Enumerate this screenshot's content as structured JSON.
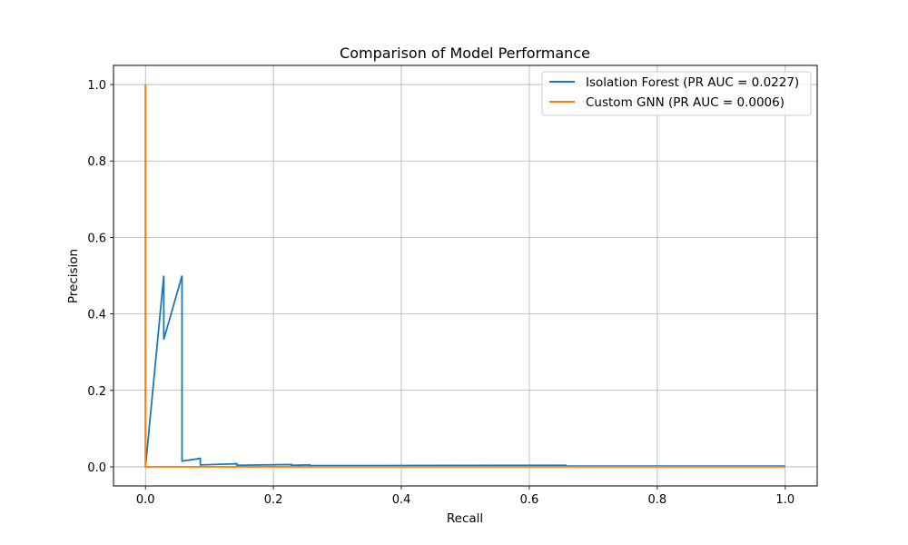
{
  "chart_data": {
    "type": "line",
    "title": "Comparison of Model Performance",
    "xlabel": "Recall",
    "ylabel": "Precision",
    "xlim": [
      -0.05,
      1.05
    ],
    "ylim": [
      -0.05,
      1.05
    ],
    "xticks": [
      0.0,
      0.2,
      0.4,
      0.6,
      0.8,
      1.0
    ],
    "xtick_labels": [
      "0.0",
      "0.2",
      "0.4",
      "0.6",
      "0.8",
      "1.0"
    ],
    "yticks": [
      0.0,
      0.2,
      0.4,
      0.6,
      0.8,
      1.0
    ],
    "ytick_labels": [
      "0.0",
      "0.2",
      "0.4",
      "0.6",
      "0.8",
      "1.0"
    ],
    "grid": true,
    "legend_position": "upper right",
    "series": [
      {
        "name": "Isolation Forest (PR AUC = 0.0227)",
        "color": "#1f77b4",
        "x": [
          0.0,
          0.0,
          0.0286,
          0.0286,
          0.0571,
          0.0571,
          0.0857,
          0.0857,
          0.1429,
          0.1429,
          0.2286,
          0.2286,
          0.2571,
          0.2571,
          0.6571,
          0.6571,
          1.0
        ],
        "y": [
          1.0,
          0.0,
          0.5,
          0.333,
          0.5,
          0.015,
          0.022,
          0.005,
          0.008,
          0.004,
          0.006,
          0.004,
          0.005,
          0.003,
          0.004,
          0.002,
          0.002
        ]
      },
      {
        "name": "Custom GNN (PR AUC = 0.0006)",
        "color": "#ff7f0e",
        "x": [
          0.0,
          0.0,
          1.0
        ],
        "y": [
          1.0,
          0.0,
          0.0
        ]
      }
    ]
  }
}
